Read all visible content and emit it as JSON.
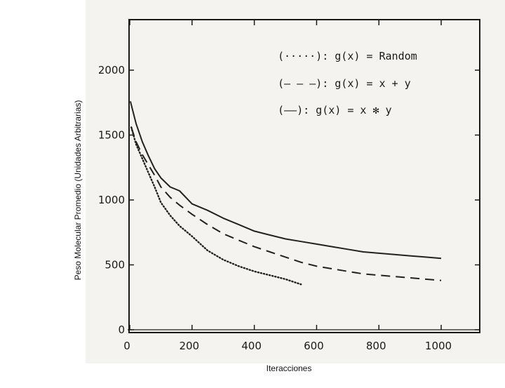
{
  "chart_data": {
    "type": "line",
    "title": "",
    "xlabel": "Iteracciones",
    "ylabel": "Peso Molecular Promedio (Unidades Arbitrarias)",
    "xlim": [
      0,
      1000
    ],
    "ylim": [
      0,
      2000
    ],
    "xticks": [
      "0",
      "200",
      "400",
      "600",
      "800",
      "1000"
    ],
    "yticks": [
      "0",
      "500",
      "1000",
      "1500",
      "2000"
    ],
    "grid": false,
    "legend_position": "top-right",
    "series": [
      {
        "name": "(·····): g(x) = Random",
        "style": "dotted",
        "x": [
          5,
          20,
          40,
          60,
          80,
          100,
          130,
          160,
          200,
          250,
          300,
          350,
          400,
          450,
          500,
          550
        ],
        "y": [
          1560,
          1430,
          1320,
          1210,
          1100,
          980,
          880,
          800,
          720,
          610,
          540,
          490,
          450,
          420,
          390,
          350
        ]
      },
      {
        "name": "(– – –): g(x) = x + y",
        "style": "dashed",
        "x": [
          5,
          20,
          40,
          60,
          80,
          100,
          130,
          160,
          200,
          250,
          300,
          350,
          400,
          450,
          500,
          550,
          600,
          650,
          700,
          750,
          800,
          850,
          900,
          950,
          1000
        ],
        "y": [
          1560,
          1450,
          1350,
          1270,
          1190,
          1100,
          1020,
          960,
          890,
          810,
          740,
          690,
          640,
          600,
          560,
          520,
          490,
          470,
          450,
          430,
          420,
          410,
          400,
          390,
          380
        ]
      },
      {
        "name": "(——): g(x) = x ✻ y",
        "style": "solid",
        "x": [
          2,
          20,
          40,
          60,
          80,
          100,
          130,
          160,
          200,
          250,
          300,
          350,
          400,
          450,
          500,
          550,
          600,
          650,
          700,
          750,
          800,
          850,
          900,
          950,
          1000
        ],
        "y": [
          1760,
          1590,
          1450,
          1340,
          1240,
          1170,
          1100,
          1070,
          970,
          920,
          860,
          810,
          760,
          730,
          700,
          680,
          660,
          640,
          620,
          600,
          590,
          580,
          570,
          560,
          550
        ]
      }
    ]
  }
}
